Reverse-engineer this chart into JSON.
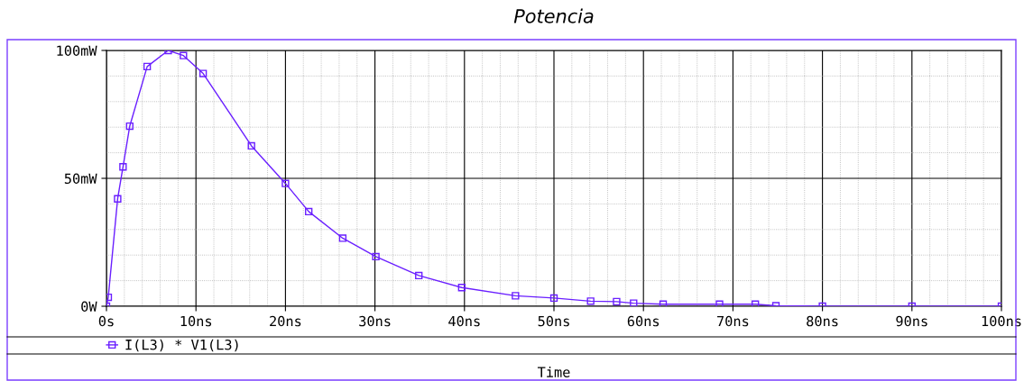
{
  "chart_data": {
    "type": "line",
    "title": "Potencia",
    "xlabel": "Time",
    "series": [
      {
        "name": "I(L3) * V1(L3)",
        "color": "#6a1fff",
        "x": [
          0,
          0.2,
          1.25,
          1.85,
          2.6,
          4.55,
          6.9,
          8.6,
          10.8,
          16.2,
          20,
          22.6,
          26.4,
          30.1,
          34.9,
          39.7,
          45.7,
          50,
          54.1,
          57,
          58.9,
          62.2,
          68.5,
          72.5,
          74.8,
          80,
          90,
          100
        ],
        "values": [
          0,
          3.5,
          42,
          54.5,
          70.4,
          93.7,
          100,
          98,
          91,
          62.7,
          48,
          37,
          26.6,
          19.4,
          12,
          7.3,
          4.1,
          3.2,
          2.0,
          1.8,
          1.2,
          0.8,
          0.8,
          0.8,
          0.2,
          0,
          0,
          0
        ]
      }
    ],
    "xlim": [
      0,
      100
    ],
    "xticks": [
      {
        "value": 0,
        "label": "0s"
      },
      {
        "value": 10,
        "label": "10ns"
      },
      {
        "value": 20,
        "label": "20ns"
      },
      {
        "value": 30,
        "label": "30ns"
      },
      {
        "value": 40,
        "label": "40ns"
      },
      {
        "value": 50,
        "label": "50ns"
      },
      {
        "value": 60,
        "label": "60ns"
      },
      {
        "value": 70,
        "label": "70ns"
      },
      {
        "value": 80,
        "label": "80ns"
      },
      {
        "value": 90,
        "label": "90ns"
      },
      {
        "value": 100,
        "label": "100ns"
      }
    ],
    "ylim": [
      0,
      100
    ],
    "yticks": [
      {
        "value": 0,
        "label": "0W"
      },
      {
        "value": 50,
        "label": "50mW"
      },
      {
        "value": 100,
        "label": "100mW"
      }
    ],
    "grid": true,
    "legend": "bottom left",
    "marker": "square",
    "line_style": "solid"
  }
}
